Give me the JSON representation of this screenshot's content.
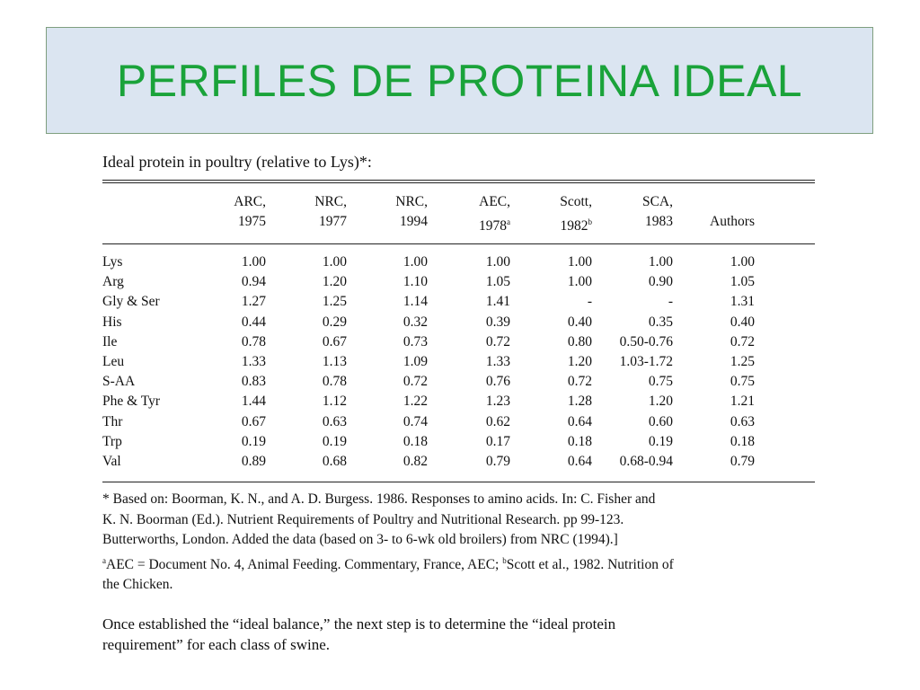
{
  "slide": {
    "title": "PERFILES DE PROTEINA IDEAL"
  },
  "table": {
    "title": "Ideal protein in poultry (relative to Lys)*:",
    "columns": [
      {
        "line1": "ARC,",
        "line2": "1975",
        "sup": ""
      },
      {
        "line1": "NRC,",
        "line2": "1977",
        "sup": ""
      },
      {
        "line1": "NRC,",
        "line2": "1994",
        "sup": ""
      },
      {
        "line1": "AEC,",
        "line2": "1978",
        "sup": "a"
      },
      {
        "line1": "Scott,",
        "line2": "1982",
        "sup": "b"
      },
      {
        "line1": "SCA,",
        "line2": "1983",
        "sup": ""
      },
      {
        "line1": "",
        "line2": "Authors",
        "sup": ""
      }
    ],
    "rows": [
      {
        "label": "Lys",
        "values": [
          "1.00",
          "1.00",
          "1.00",
          "1.00",
          "1.00",
          "1.00",
          "1.00"
        ]
      },
      {
        "label": "Arg",
        "values": [
          "0.94",
          "1.20",
          "1.10",
          "1.05",
          "1.00",
          "0.90",
          "1.05"
        ]
      },
      {
        "label": "Gly & Ser",
        "values": [
          "1.27",
          "1.25",
          "1.14",
          "1.41",
          "-",
          "-",
          "1.31"
        ]
      },
      {
        "label": "His",
        "values": [
          "0.44",
          "0.29",
          "0.32",
          "0.39",
          "0.40",
          "0.35",
          "0.40"
        ]
      },
      {
        "label": "Ile",
        "values": [
          "0.78",
          "0.67",
          "0.73",
          "0.72",
          "0.80",
          "0.50-0.76",
          "0.72"
        ]
      },
      {
        "label": "Leu",
        "values": [
          "1.33",
          "1.13",
          "1.09",
          "1.33",
          "1.20",
          "1.03-1.72",
          "1.25"
        ]
      },
      {
        "label": "S-AA",
        "values": [
          "0.83",
          "0.78",
          "0.72",
          "0.76",
          "0.72",
          "0.75",
          "0.75"
        ]
      },
      {
        "label": "Phe & Tyr",
        "values": [
          "1.44",
          "1.12",
          "1.22",
          "1.23",
          "1.28",
          "1.20",
          "1.21"
        ]
      },
      {
        "label": "Thr",
        "values": [
          "0.67",
          "0.63",
          "0.74",
          "0.62",
          "0.64",
          "0.60",
          "0.63"
        ]
      },
      {
        "label": "Trp",
        "values": [
          "0.19",
          "0.19",
          "0.18",
          "0.17",
          "0.18",
          "0.19",
          "0.18"
        ]
      },
      {
        "label": "Val",
        "values": [
          "0.89",
          "0.68",
          "0.82",
          "0.79",
          "0.64",
          "0.68-0.94",
          "0.79"
        ]
      }
    ]
  },
  "footnotes": {
    "line1": "* Based on: Boorman, K. N., and A. D. Burgess. 1986. Responses to amino acids. In: C. Fisher and",
    "line2": "K. N. Boorman (Ed.). Nutrient Requirements of Poultry and Nutritional Research. pp 99-123.",
    "line3": "Butterworths, London. Added the data (based on 3- to 6-wk old broilers) from NRC (1994).]",
    "line4_sup_a": "a",
    "line4_a": "AEC = Document No. 4, Animal Feeding. Commentary, France, AEC; ",
    "line4_sup_b": "b",
    "line4_b": "Scott et al., 1982. Nutrition of",
    "line5": "the Chicken."
  },
  "closing": {
    "line1": "Once established the “ideal balance,” the next step is to determine the “ideal protein",
    "line2": "requirement” for each class of swine."
  }
}
